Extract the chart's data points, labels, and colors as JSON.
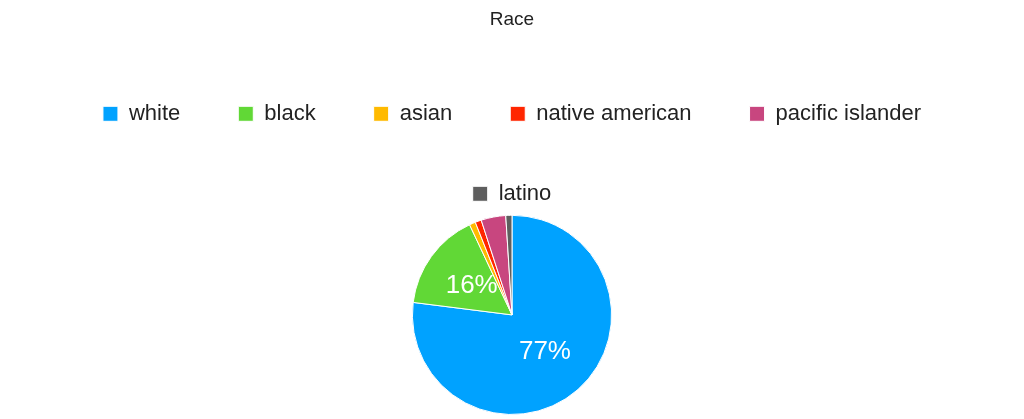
{
  "chart_data": {
    "type": "pie",
    "title": "Race",
    "categories": [
      "white",
      "black",
      "asian",
      "native american",
      "pacific islander",
      "latino"
    ],
    "values": [
      77,
      16,
      1,
      1,
      4,
      1
    ],
    "colors": [
      "#00a2ff",
      "#61d836",
      "#ffba00",
      "#ff2600",
      "#c8467f",
      "#5e5e5e"
    ],
    "value_labels": [
      "77%",
      "16%",
      null,
      null,
      null,
      null
    ],
    "legend": "top"
  }
}
